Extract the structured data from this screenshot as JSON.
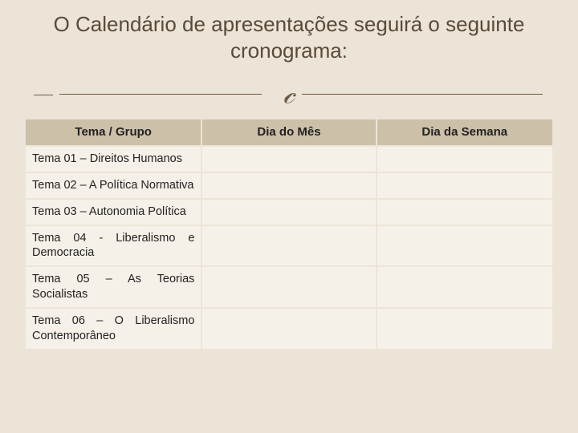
{
  "title": "O Calendário de apresentações seguirá o seguinte cronograma:",
  "ornament_glyph": "&#x1D4B8;",
  "table": {
    "columns": [
      "Tema  / Grupo",
      "Dia do Mês",
      "Dia da Semana"
    ],
    "rows": [
      [
        "Tema 01 – Direitos Humanos",
        "",
        ""
      ],
      [
        "Tema 02 – A Política Normativa",
        "",
        ""
      ],
      [
        "Tema 03 – Autonomia Política",
        "",
        ""
      ],
      [
        "Tema 04 - Liberalismo e Democracia",
        "",
        ""
      ],
      [
        "Tema 05 – As Teorias Socialistas",
        "",
        ""
      ],
      [
        "Tema 06 – O Liberalismo Contemporâneo",
        "",
        ""
      ]
    ],
    "header_bg": "#cdc0a9",
    "cell_bg": "#f6f1e8",
    "border_spacing": 2
  },
  "colors": {
    "slide_bg": "#ece4d7",
    "title_color": "#5a4a3a",
    "divider_color": "#6b5a44"
  },
  "typography": {
    "title_fontsize": 26,
    "header_fontsize": 15,
    "cell_fontsize": 14.5
  }
}
